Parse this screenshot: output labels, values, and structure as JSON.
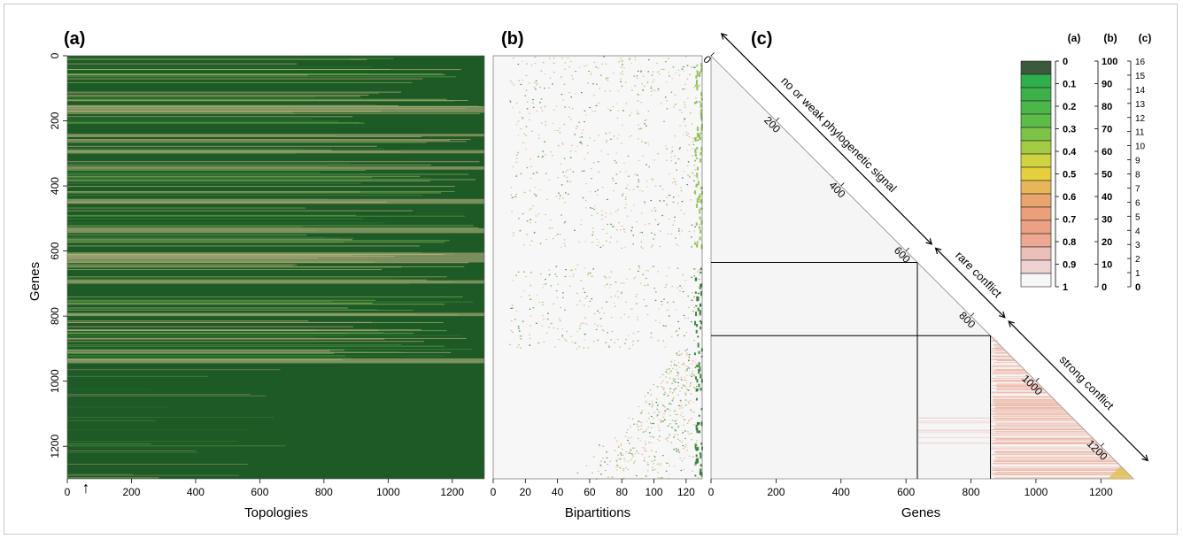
{
  "figure": {
    "panels": [
      "(a)",
      "(b)",
      "(c)"
    ]
  },
  "chart_data": [
    {
      "panel": "(a)",
      "type": "heatmap",
      "xlabel": "Topologies",
      "ylabel": "Genes",
      "xlim": [
        0,
        1300
      ],
      "ylim": [
        1300,
        0
      ],
      "xticks": [
        "0",
        "200",
        "400",
        "600",
        "800",
        "1000",
        "1200"
      ],
      "yticks": [
        "0",
        "200",
        "400",
        "600",
        "800",
        "1000",
        "1200"
      ],
      "marker": "↑",
      "marker_x": 55,
      "base_color": "#1e5a26",
      "bright_band_rows": [
        [
          155,
          175
        ],
        [
          240,
          248
        ],
        [
          290,
          300
        ],
        [
          340,
          350
        ],
        [
          440,
          455
        ],
        [
          530,
          545
        ],
        [
          605,
          635
        ],
        [
          690,
          700
        ],
        [
          790,
          800
        ],
        [
          930,
          945
        ]
      ]
    },
    {
      "panel": "(b)",
      "type": "heatmap",
      "xlabel": "Bipartitions",
      "ylabel": "",
      "xlim": [
        0,
        130
      ],
      "ylim": [
        1300,
        0
      ],
      "xticks": [
        "0",
        "20",
        "40",
        "60",
        "80",
        "100",
        "120"
      ],
      "base_color": "#f7f7f7",
      "empty_band_rows": [
        590,
        640
      ]
    },
    {
      "panel": "(c)",
      "type": "heatmap",
      "xlabel": "Genes",
      "xlim": [
        0,
        1300
      ],
      "xticks": [
        "0",
        "200",
        "400",
        "600",
        "800",
        "1000",
        "1200"
      ],
      "diag_ticks": [
        "0",
        "200",
        "400",
        "600",
        "800",
        "1000",
        "1200"
      ],
      "boundaries": [
        635,
        860
      ],
      "regions": [
        {
          "label": "no or weak phylogenetic signal",
          "from": 0,
          "to": 635
        },
        {
          "label": "rare conflict",
          "from": 635,
          "to": 860
        },
        {
          "label": "strong conflict",
          "from": 860,
          "to": 1300
        }
      ]
    }
  ],
  "legend": {
    "headers": [
      "(a)",
      "(b)",
      "(c)"
    ],
    "colors": [
      "#3b5a3b",
      "#2fae4c",
      "#3eb04a",
      "#4cb649",
      "#5bbd48",
      "#7cc348",
      "#a3cb43",
      "#cfd33f",
      "#e6cf3c",
      "#e7b65a",
      "#eaa46e",
      "#eca079",
      "#eca184",
      "#eca890",
      "#ecbfb8",
      "#edd3d2",
      "#f7f7f7"
    ],
    "scale_a": [
      "0",
      "0.1",
      "0.2",
      "0.3",
      "0.4",
      "0.5",
      "0.6",
      "0.7",
      "0.8",
      "0.9",
      "1"
    ],
    "scale_b": [
      "100",
      "90",
      "80",
      "70",
      "60",
      "50",
      "40",
      "30",
      "20",
      "10",
      "0"
    ],
    "scale_c": [
      "16",
      "15",
      "14",
      "13",
      "12",
      "11",
      "10",
      "9",
      "8",
      "7",
      "6",
      "5",
      "4",
      "3",
      "2",
      "1",
      "0"
    ]
  }
}
